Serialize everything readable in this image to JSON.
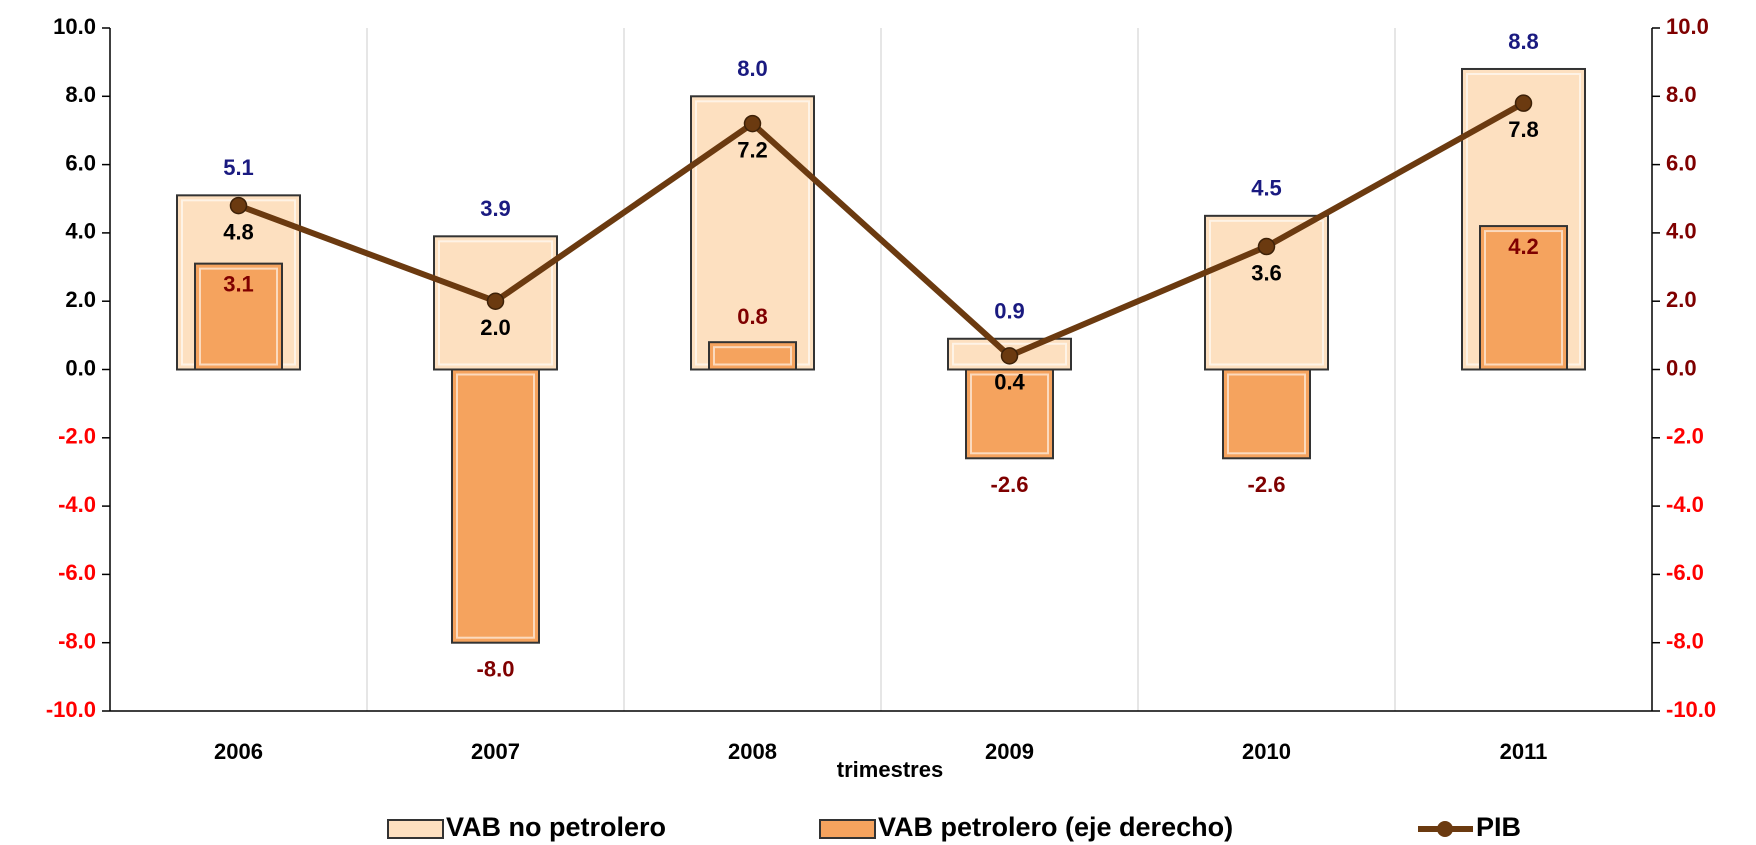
{
  "chart_data": {
    "type": "bar-line",
    "x_label": "trimestres",
    "categories": [
      "2006",
      "2007",
      "2008",
      "2009",
      "2010",
      "2011"
    ],
    "series": [
      {
        "name": "VAB no petrolero",
        "type": "bar",
        "color": "#fde0c0",
        "label_color": "#1a1a80",
        "axis": "y",
        "values": [
          5.1,
          3.9,
          8.0,
          0.9,
          4.5,
          8.8
        ],
        "value_labels": [
          "5.1",
          "3.9",
          "8.0",
          "0.9",
          "4.5",
          "8.8"
        ]
      },
      {
        "name": "VAB petrolero (eje derecho)",
        "type": "bar",
        "color": "#f5a35e",
        "label_color": "#7f0000",
        "axis": "y2",
        "values": [
          3.1,
          -8.0,
          0.8,
          -2.6,
          -2.6,
          4.2
        ],
        "value_labels": [
          "3.1",
          "-8.0",
          "0.8",
          "-2.6",
          "-2.6",
          "4.2"
        ]
      },
      {
        "name": "PIB",
        "type": "line",
        "color": "#6b3a10",
        "label_color": "#000000",
        "axis": "y",
        "values": [
          4.8,
          2.0,
          7.2,
          0.4,
          3.6,
          7.8
        ],
        "value_labels": [
          "4.8",
          "2.0",
          "7.2",
          "0.4",
          "3.6",
          "7.8"
        ]
      }
    ],
    "ylim": [
      -10,
      10
    ],
    "yticks": [
      {
        "value": -10,
        "label": "-10.0"
      },
      {
        "value": -8,
        "label": "-8.0"
      },
      {
        "value": -6,
        "label": "-6.0"
      },
      {
        "value": -4,
        "label": "-4.0"
      },
      {
        "value": -2,
        "label": "-2.0"
      },
      {
        "value": 0,
        "label": "0.0"
      },
      {
        "value": 2,
        "label": "2.0"
      },
      {
        "value": 4,
        "label": "4.0"
      },
      {
        "value": 6,
        "label": "6.0"
      },
      {
        "value": 8,
        "label": "8.0"
      },
      {
        "value": 10,
        "label": "10.0"
      }
    ],
    "y2lim": [
      -10,
      10
    ],
    "y2ticks": [
      {
        "value": -10,
        "label": "-10.0"
      },
      {
        "value": -8,
        "label": "-8.0"
      },
      {
        "value": -6,
        "label": "-6.0"
      },
      {
        "value": -4,
        "label": "-4.0"
      },
      {
        "value": -2,
        "label": "-2.0"
      },
      {
        "value": 0,
        "label": "0.0"
      },
      {
        "value": 2,
        "label": "2.0"
      },
      {
        "value": 4,
        "label": "4.0"
      },
      {
        "value": 6,
        "label": "6.0"
      },
      {
        "value": 8,
        "label": "8.0"
      },
      {
        "value": 10,
        "label": "10.0"
      }
    ],
    "legend": "bottom"
  }
}
